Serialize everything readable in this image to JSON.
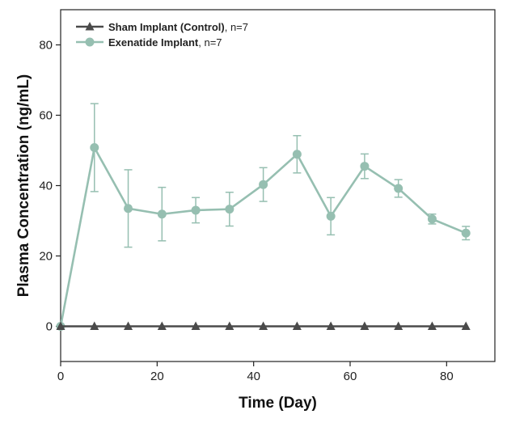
{
  "chart_data": {
    "type": "line",
    "title": "",
    "xlabel": "Time (Day)",
    "ylabel": "Plasma Concentration (ng/mL)",
    "xlim": [
      0,
      90
    ],
    "ylim": [
      -10,
      90
    ],
    "xticks": [
      0,
      20,
      40,
      60,
      80
    ],
    "yticks": [
      0,
      20,
      40,
      60,
      80
    ],
    "grid": false,
    "legend_position": "top-left",
    "series": [
      {
        "name": "Sham Implant (Control)",
        "legend_bold": "Sham Implant (Control)",
        "legend_suffix": ", n=7",
        "marker": "triangle",
        "color": "#4a4a4a",
        "x": [
          0,
          7,
          14,
          21,
          28,
          35,
          42,
          49,
          56,
          63,
          70,
          77,
          84
        ],
        "y": [
          0,
          0,
          0,
          0,
          0,
          0,
          0,
          0,
          0,
          0,
          0,
          0,
          0
        ],
        "err": [
          0,
          0,
          0,
          0,
          0,
          0,
          0,
          0,
          0,
          0,
          0,
          0,
          0
        ]
      },
      {
        "name": "Exenatide Implant",
        "legend_bold": "Exenatide Implant",
        "legend_suffix": ", n=7",
        "marker": "circle",
        "color": "#96bfb1",
        "x": [
          0,
          7,
          14,
          21,
          28,
          35,
          42,
          49,
          56,
          63,
          70,
          77,
          84
        ],
        "y": [
          0,
          50.8,
          33.5,
          31.9,
          33.0,
          33.3,
          40.3,
          48.9,
          31.3,
          45.5,
          39.2,
          30.5,
          26.5
        ],
        "err": [
          0,
          12.5,
          11.0,
          7.6,
          3.6,
          4.8,
          4.8,
          5.3,
          5.3,
          3.5,
          2.5,
          1.4,
          1.9
        ]
      }
    ]
  }
}
